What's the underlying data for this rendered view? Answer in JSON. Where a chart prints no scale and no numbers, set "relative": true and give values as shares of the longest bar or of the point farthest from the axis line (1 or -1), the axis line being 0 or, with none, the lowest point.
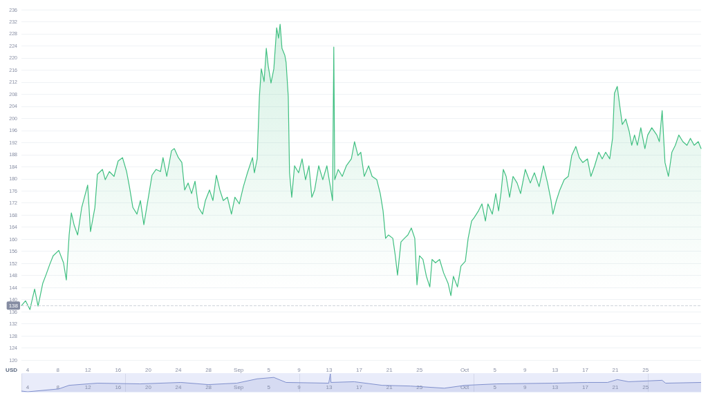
{
  "chart_data": [
    {
      "type": "area",
      "ylabel": "USD",
      "color": "#3fbf80",
      "grid": "y",
      "marker": "none",
      "line_style": "solid",
      "xlim": [
        "--08-03T04:00",
        "--11-01T09:00"
      ],
      "xticks": [
        {
          "value": "--08-04",
          "label": "4"
        },
        {
          "value": "--08-08",
          "label": "8"
        },
        {
          "value": "--08-12",
          "label": "12"
        },
        {
          "value": "--08-16",
          "label": "16"
        },
        {
          "value": "--08-20",
          "label": "20"
        },
        {
          "value": "--08-24",
          "label": "24"
        },
        {
          "value": "--08-28",
          "label": "28"
        },
        {
          "value": "--09-01",
          "label": "Sep"
        },
        {
          "value": "--09-05",
          "label": "5"
        },
        {
          "value": "--09-09",
          "label": "9"
        },
        {
          "value": "--09-13",
          "label": "13"
        },
        {
          "value": "--09-17",
          "label": "17"
        },
        {
          "value": "--09-21",
          "label": "21"
        },
        {
          "value": "--09-25",
          "label": "25"
        },
        {
          "value": "--10-01",
          "label": "Oct"
        },
        {
          "value": "--10-05",
          "label": "5"
        },
        {
          "value": "--10-09",
          "label": "9"
        },
        {
          "value": "--10-13",
          "label": "13"
        },
        {
          "value": "--10-17",
          "label": "17"
        },
        {
          "value": "--10-21",
          "label": "21"
        },
        {
          "value": "--10-25",
          "label": "25"
        }
      ],
      "ylim": [
        120,
        236
      ],
      "yticks": [
        120,
        124,
        128,
        132,
        136,
        140,
        144,
        148,
        152,
        156,
        160,
        164,
        168,
        172,
        176,
        180,
        184,
        188,
        192,
        196,
        200,
        204,
        208,
        212,
        216,
        220,
        224,
        228,
        232,
        236
      ],
      "ref_lines": [
        {
          "axis": "y",
          "value": 138,
          "label": "138",
          "color": "#cfd3da",
          "line_style": "dashed"
        }
      ],
      "x": [
        "--08-03T04:00",
        "--08-03T17:00",
        "--08-04T07:00",
        "--08-04T22:00",
        "--08-05T09:00",
        "--08-06T00:00",
        "--08-06T11:00",
        "--08-06T22:00",
        "--08-07T09:00",
        "--08-08T03:00",
        "--08-08T18:00",
        "--08-09T03:00",
        "--08-09T12:00",
        "--08-09T19:00",
        "--08-10T04:00",
        "--08-10T15:00",
        "--08-11T04:00",
        "--08-11T23:00",
        "--08-12T08:00",
        "--08-12T22:00",
        "--08-13T06:00",
        "--08-13T22:00",
        "--08-14T07:00",
        "--08-14T20:00",
        "--08-15T11:00",
        "--08-16T00:00",
        "--08-16T14:00",
        "--08-17T03:00",
        "--08-17T12:00",
        "--08-17T23:00",
        "--08-18T12:00",
        "--08-18T23:00",
        "--08-19T10:00",
        "--08-19T19:00",
        "--08-20T12:00",
        "--08-21T01:00",
        "--08-21T15:00",
        "--08-21T23:00",
        "--08-22T11:00",
        "--08-23T02:00",
        "--08-23T11:00",
        "--08-24T00:00",
        "--08-24T11:00",
        "--08-24T20:00",
        "--08-25T07:00",
        "--08-25T18:00",
        "--08-26T05:00",
        "--08-26T16:00",
        "--08-27T05:00",
        "--08-27T14:00",
        "--08-28T03:00",
        "--08-28T14:00",
        "--08-29T01:00",
        "--08-29T12:00",
        "--08-29T23:00",
        "--08-30T12:00",
        "--08-31T01:00",
        "--08-31T12:00",
        "--09-01T02:00",
        "--09-01T15:00",
        "--09-02T04:00",
        "--09-02T20:00",
        "--09-03T02:00",
        "--09-03T11:00",
        "--09-03T18:00",
        "--09-04T00:00",
        "--09-04T09:00",
        "--09-04T16:00",
        "--09-04T22:00",
        "--09-05T07:00",
        "--09-05T16:00",
        "--09-06T01:00",
        "--09-06T07:00",
        "--09-06T12:00",
        "--09-06T18:00",
        "--09-07T03:00",
        "--09-07T07:00",
        "--09-07T14:00",
        "--09-07T18:00",
        "--09-08T01:00",
        "--09-08T10:00",
        "--09-08T23:00",
        "--09-09T10:00",
        "--09-09T21:00",
        "--09-10T08:00",
        "--09-10T17:00",
        "--09-11T02:00",
        "--09-11T15:00",
        "--09-12T04:00",
        "--09-12T17:00",
        "--09-13T04:00",
        "--09-13T11:00",
        "--09-13T15:00",
        "--09-13T18:00",
        "--09-14T05:00",
        "--09-14T18:00",
        "--09-15T07:00",
        "--09-15T23:00",
        "--09-16T09:00",
        "--09-16T20:00",
        "--09-17T05:00",
        "--09-17T16:00",
        "--09-18T06:00",
        "--09-18T17:00",
        "--09-19T08:00",
        "--09-19T19:00",
        "--09-20T04:00",
        "--09-20T12:00",
        "--09-20T21:00",
        "--09-21T11:00",
        "--09-21T19:00",
        "--09-22T02:00",
        "--09-22T13:00",
        "--09-23T00:00",
        "--09-23T11:00",
        "--09-23T22:00",
        "--09-24T09:00",
        "--09-24T16:00",
        "--09-25T00:00",
        "--09-25T11:00",
        "--09-25T22:00",
        "--09-26T09:00",
        "--09-26T16:00",
        "--09-27T03:00",
        "--09-27T16:00",
        "--09-28T05:00",
        "--09-28T19:00",
        "--09-29T04:00",
        "--09-29T12:00",
        "--09-30T01:00",
        "--09-30T12:00",
        "--10-01T02:00",
        "--10-01T11:00",
        "--10-01T22:00",
        "--10-02T06:00",
        "--10-02T20:00",
        "--10-03T07:00",
        "--10-03T18:00",
        "--10-04T02:00",
        "--10-04T16:00",
        "--10-05T03:00",
        "--10-05T12:00",
        "--10-05T20:00",
        "--10-06T03:00",
        "--10-06T12:00",
        "--10-06T23:00",
        "--10-07T10:00",
        "--10-07T23:00",
        "--10-08T10:00",
        "--10-09T01:00",
        "--10-09T17:00",
        "--10-10T06:00",
        "--10-10T21:00",
        "--10-11T11:00",
        "--10-12T00:00",
        "--10-12T11:00",
        "--10-12T17:00",
        "--10-13T04:00",
        "--10-13T15:00",
        "--10-14T05:00",
        "--10-14T18:00",
        "--10-15T05:00",
        "--10-15T18:00",
        "--10-16T05:00",
        "--10-16T16:00",
        "--10-17T07:00",
        "--10-17T18:00",
        "--10-18T06:00",
        "--10-18T19:00",
        "--10-19T06:00",
        "--10-19T17:00",
        "--10-20T06:00",
        "--10-20T15:00",
        "--10-20T21:00",
        "--10-21T06:00",
        "--10-21T13:00",
        "--10-21T22:00",
        "--10-22T09:00",
        "--10-22T20:00",
        "--10-23T04:00",
        "--10-23T13:00",
        "--10-23T22:00",
        "--10-24T09:00",
        "--10-24T22:00",
        "--10-25T07:00",
        "--10-25T20:00",
        "--10-26T12:00",
        "--10-26T20:00",
        "--10-27T05:00",
        "--10-27T14:00",
        "--10-28T01:00",
        "--10-28T12:00",
        "--10-28T23:00",
        "--10-29T10:00",
        "--10-29T23:00",
        "--10-30T12:00",
        "--10-30T23:00",
        "--10-31T11:00",
        "--11-01T00:00",
        "--11-01T09:00"
      ],
      "values": [
        138,
        139.6,
        136.7,
        143.5,
        137.8,
        145.4,
        148.4,
        151.6,
        154.5,
        156.3,
        152.2,
        146.5,
        161.4,
        168.7,
        164.6,
        161.4,
        170.5,
        177.9,
        162.5,
        170.5,
        181.5,
        183.1,
        179.7,
        182.4,
        180.8,
        185.9,
        187,
        182.4,
        177.4,
        170.5,
        168.3,
        172.8,
        164.8,
        170.5,
        181.2,
        183.1,
        182.4,
        187,
        180.8,
        189.3,
        190,
        187,
        185.4,
        176.3,
        178.6,
        175.1,
        179.2,
        170.5,
        168.3,
        172.8,
        176.3,
        172.8,
        181.2,
        176.3,
        172.8,
        173.9,
        168.3,
        173.9,
        171.7,
        177.4,
        182,
        187,
        182,
        186.6,
        207.2,
        216.4,
        212.2,
        223.2,
        217.5,
        211.7,
        216.4,
        230,
        226.6,
        231.2,
        223.2,
        220.9,
        218.6,
        207.2,
        182,
        173.9,
        184.3,
        182,
        186.6,
        179.7,
        184.3,
        173.9,
        176.3,
        184.3,
        179.7,
        184.3,
        177.4,
        172.8,
        223.6,
        179.7,
        183.1,
        180.8,
        184.3,
        186.6,
        192.3,
        187.7,
        188.8,
        180.8,
        184.3,
        180.8,
        179.7,
        175.1,
        169.4,
        160.3,
        161.4,
        160.3,
        154.5,
        148.1,
        159.1,
        160.3,
        161.4,
        163.7,
        160.3,
        144.9,
        154.5,
        153.3,
        147.7,
        144.2,
        153.3,
        152.2,
        153.3,
        148.8,
        145.4,
        141.3,
        147.7,
        144.2,
        151.1,
        152.7,
        160.3,
        166,
        167.1,
        169.4,
        171.7,
        166,
        171.7,
        168.3,
        175.1,
        169.4,
        175.6,
        183.1,
        180.8,
        173.9,
        180.8,
        178.6,
        175.1,
        183.1,
        178.6,
        182,
        177.4,
        184.3,
        178.6,
        172.8,
        168.3,
        172.8,
        176.3,
        179.7,
        180.8,
        187.7,
        190.7,
        187,
        185.4,
        186.6,
        180.8,
        184.3,
        188.8,
        186.6,
        188.8,
        186.6,
        193.4,
        208.3,
        210.6,
        204.9,
        198,
        199.8,
        195.7,
        191.1,
        194.5,
        191.1,
        196.9,
        190,
        194.5,
        196.9,
        194.5,
        192.3,
        202.6,
        185.4,
        180.8,
        188.8,
        191.1,
        194.5,
        192.3,
        191.1,
        193.4,
        191.1,
        192.3,
        190
      ]
    },
    {
      "type": "area",
      "relative": true,
      "color": "#7f8fcc",
      "tick_labels": "x",
      "grid": "x",
      "marker": "none",
      "xlim": [
        "--08-03T04:00",
        "--11-01T09:00"
      ],
      "xticks": [
        {
          "value": "--08-04",
          "label": "4"
        },
        {
          "value": "--08-08",
          "label": "8"
        },
        {
          "value": "--08-12",
          "label": "12"
        },
        {
          "value": "--08-16",
          "label": "16"
        },
        {
          "value": "--08-20",
          "label": "20"
        },
        {
          "value": "--08-24",
          "label": "24"
        },
        {
          "value": "--08-28",
          "label": "28"
        },
        {
          "value": "--09-01",
          "label": "Sep"
        },
        {
          "value": "--09-05",
          "label": "5"
        },
        {
          "value": "--09-09",
          "label": "9"
        },
        {
          "value": "--09-13",
          "label": "13"
        },
        {
          "value": "--09-17",
          "label": "17"
        },
        {
          "value": "--09-21",
          "label": "21"
        },
        {
          "value": "--09-25",
          "label": "25"
        },
        {
          "value": "--10-01",
          "label": "Oct"
        },
        {
          "value": "--10-05",
          "label": "5"
        },
        {
          "value": "--10-09",
          "label": "9"
        },
        {
          "value": "--10-13",
          "label": "13"
        },
        {
          "value": "--10-17",
          "label": "17"
        },
        {
          "value": "--10-21",
          "label": "21"
        },
        {
          "value": "--10-25",
          "label": "25"
        }
      ],
      "x": [
        "--08-03T04:00",
        "--08-04T00:00",
        "--08-08T03:00",
        "--08-09T12:00",
        "--08-13T06:00",
        "--08-18T22:00",
        "--08-24T08:00",
        "--08-27T23:00",
        "--08-31T18:00",
        "--09-03T11:00",
        "--09-05T16:00",
        "--09-07T07:00",
        "--09-12T23:00",
        "--09-13T04:00",
        "--09-13T06:00",
        "--09-16T08:00",
        "--09-20T01:00",
        "--09-23T19:00",
        "--09-28T07:00",
        "--10-01T02:00",
        "--10-05T07:00",
        "--10-12T17:00",
        "--10-17T07:00",
        "--10-19T23:00",
        "--10-21T06:00",
        "--10-22T18:00",
        "--10-27T05:00",
        "--10-27T16:00",
        "--11-01T09:00"
      ],
      "values": [
        0.04,
        0,
        0.16,
        0.36,
        0.48,
        0.44,
        0.52,
        0.4,
        0.48,
        0.72,
        0.8,
        0.52,
        0.48,
        1,
        0.52,
        0.56,
        0.36,
        0.32,
        0.2,
        0.36,
        0.44,
        0.48,
        0.52,
        0.52,
        0.68,
        0.56,
        0.64,
        0.48,
        0.52
      ]
    }
  ]
}
